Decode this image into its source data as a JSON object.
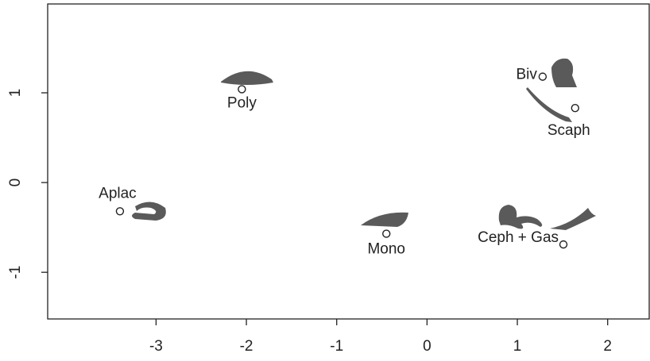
{
  "chart_data": {
    "type": "scatter",
    "points": [
      {
        "label": "Poly",
        "x": -2.05,
        "y": 1.04
      },
      {
        "label": "Biv",
        "x": 1.28,
        "y": 1.18
      },
      {
        "label": "Scaph",
        "x": 1.64,
        "y": 0.83
      },
      {
        "label": "Aplac",
        "x": -3.4,
        "y": -0.32
      },
      {
        "label": "Mono",
        "x": -0.45,
        "y": -0.57
      },
      {
        "label": "Ceph + Gas",
        "x": 1.51,
        "y": -0.69
      }
    ],
    "xlim": [
      -4.2,
      2.46
    ],
    "ylim": [
      -1.52,
      1.99
    ],
    "xticks": [
      -3,
      -2,
      -1,
      0,
      1,
      2
    ],
    "yticks": [
      -1,
      0,
      1
    ],
    "color": "#222222"
  }
}
